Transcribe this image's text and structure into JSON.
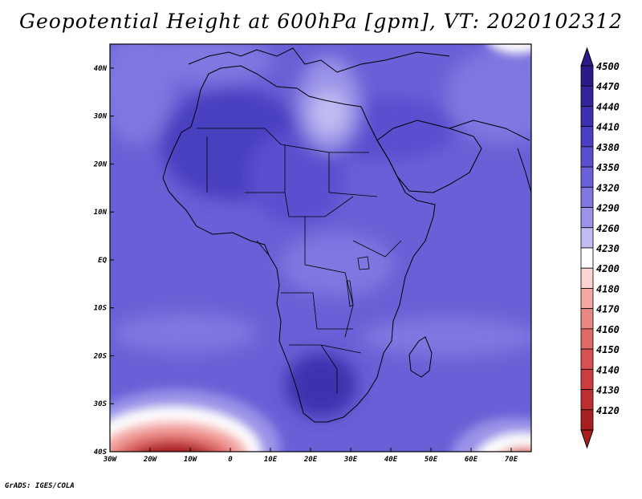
{
  "title": "Geopotential Height at 600hPa [gpm], VT: 2020102312",
  "footer": "GrADS: IGES/COLA",
  "map": {
    "lon_range": [
      -30,
      75
    ],
    "lat_range": [
      -40,
      45
    ],
    "lon_ticks": [
      {
        "value": -30,
        "label": "30W"
      },
      {
        "value": -20,
        "label": "20W"
      },
      {
        "value": -10,
        "label": "10W"
      },
      {
        "value": 0,
        "label": "0"
      },
      {
        "value": 10,
        "label": "10E"
      },
      {
        "value": 20,
        "label": "20E"
      },
      {
        "value": 30,
        "label": "30E"
      },
      {
        "value": 40,
        "label": "40E"
      },
      {
        "value": 50,
        "label": "50E"
      },
      {
        "value": 60,
        "label": "60E"
      },
      {
        "value": 70,
        "label": "70E"
      }
    ],
    "lat_ticks": [
      {
        "value": 40,
        "label": "40N"
      },
      {
        "value": 30,
        "label": "30N"
      },
      {
        "value": 20,
        "label": "20N"
      },
      {
        "value": 10,
        "label": "10N"
      },
      {
        "value": 0,
        "label": "EQ"
      },
      {
        "value": -10,
        "label": "10S"
      },
      {
        "value": -20,
        "label": "20S"
      },
      {
        "value": -30,
        "label": "30S"
      },
      {
        "value": -40,
        "label": "40S"
      }
    ],
    "background_color": "#6a5fd6"
  },
  "colorbar": {
    "levels": [
      {
        "value": "4500",
        "color": "#2a1a8a"
      },
      {
        "value": "4470",
        "color": "#33249c"
      },
      {
        "value": "4440",
        "color": "#3d30ae"
      },
      {
        "value": "4410",
        "color": "#4a3fc0"
      },
      {
        "value": "4380",
        "color": "#5a50cf"
      },
      {
        "value": "4350",
        "color": "#6a61d8"
      },
      {
        "value": "4320",
        "color": "#8077e0"
      },
      {
        "value": "4290",
        "color": "#9a93e8"
      },
      {
        "value": "4260",
        "color": "#c1bdf2"
      },
      {
        "value": "4230",
        "color": "#ffffff"
      },
      {
        "value": "4200",
        "color": "#fbd3d1"
      },
      {
        "value": "4180",
        "color": "#f3a6a3"
      },
      {
        "value": "4170",
        "color": "#e88885"
      },
      {
        "value": "4160",
        "color": "#df6b69"
      },
      {
        "value": "4150",
        "color": "#d65150"
      },
      {
        "value": "4140",
        "color": "#cc3e3d"
      },
      {
        "value": "4130",
        "color": "#be2e2e"
      },
      {
        "value": "4120",
        "color": "#a81f1f"
      }
    ]
  },
  "field_regions": [
    {
      "name": "general",
      "color": "#6a61d8"
    },
    {
      "name": "southern-dark-lows",
      "color": "#8077e0"
    },
    {
      "name": "high-africa",
      "color": "#4a3fc0"
    },
    {
      "name": "south-africa-high",
      "color": "#3d30ae"
    },
    {
      "name": "egypt-light",
      "color": "#9a93e8"
    },
    {
      "name": "egypt-white",
      "color": "#c1bdf2"
    },
    {
      "name": "south-atlantic-trough",
      "color": "#a81f1f"
    },
    {
      "name": "northeast-corner",
      "color": "#fbd3d1"
    }
  ]
}
